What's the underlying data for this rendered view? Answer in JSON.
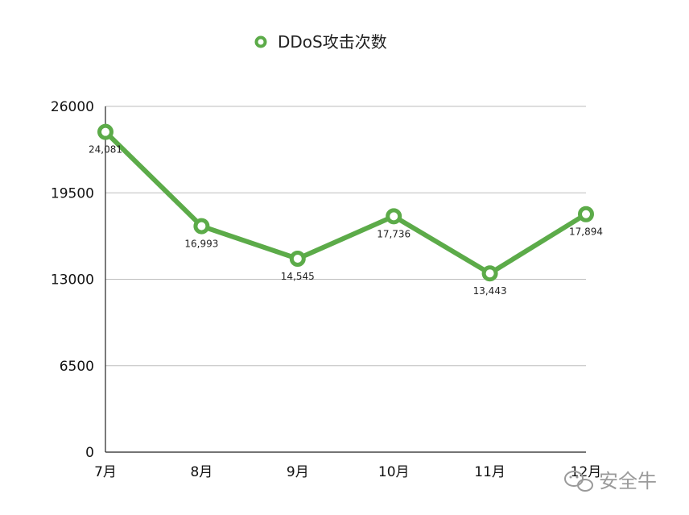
{
  "watermark": {
    "text": "安全牛"
  },
  "chart_data": {
    "type": "line",
    "categories": [
      "7月",
      "8月",
      "9月",
      "10月",
      "11月",
      "12月"
    ],
    "series": [
      {
        "name": "DDoS攻击次数",
        "values": [
          24081,
          16993,
          14545,
          17736,
          13443,
          17894
        ],
        "data_labels": [
          "24,081",
          "16,993",
          "14,545",
          "17,736",
          "13,443",
          "17,894"
        ]
      }
    ],
    "ylim": [
      0,
      26000
    ],
    "yticks": [
      0,
      6500,
      13000,
      19500,
      26000
    ],
    "ytick_labels": [
      "0",
      "6500",
      "13000",
      "19500",
      "26000"
    ],
    "grid": true,
    "legend": "top-center",
    "color": "#5cab49"
  }
}
